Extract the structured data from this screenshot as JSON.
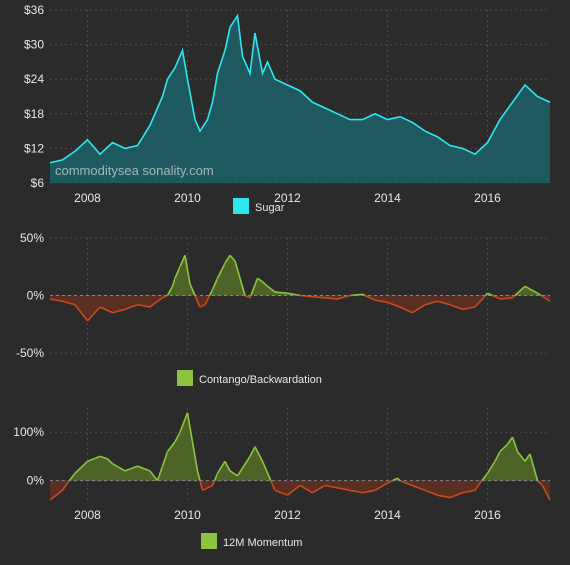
{
  "watermark": "commoditysea sonality.com",
  "colors": {
    "background": "#2b2b2b",
    "grid": "#4a4a4a",
    "text": "#e8e8e8",
    "sugar_line": "#2ee6f0",
    "sugar_fill": "#1f5c63",
    "positive_line": "#8bc53f",
    "positive_fill": "#4d6328",
    "negative_line": "#c94a1c",
    "negative_fill": "#5a2e20"
  },
  "chart_data": [
    {
      "type": "area",
      "legend": [
        "Sugar"
      ],
      "x_ticks": [
        "2008",
        "2010",
        "2012",
        "2014",
        "2016"
      ],
      "y_ticks": [
        "$6",
        "$12",
        "$18",
        "$24",
        "$30",
        "$36"
      ],
      "ylim": [
        6,
        36
      ],
      "xlim": [
        2007.25,
        2017.25
      ],
      "grid": true,
      "legend_position": "bottom-center",
      "x": [
        2007.25,
        2007.5,
        2007.75,
        2008.0,
        2008.25,
        2008.5,
        2008.75,
        2009.0,
        2009.25,
        2009.5,
        2009.6,
        2009.75,
        2009.85,
        2009.9,
        2010.0,
        2010.15,
        2010.25,
        2010.4,
        2010.5,
        2010.6,
        2010.75,
        2010.85,
        2011.0,
        2011.1,
        2011.25,
        2011.35,
        2011.5,
        2011.6,
        2011.75,
        2012.0,
        2012.25,
        2012.5,
        2012.75,
        2013.0,
        2013.25,
        2013.5,
        2013.75,
        2014.0,
        2014.25,
        2014.5,
        2014.75,
        2015.0,
        2015.25,
        2015.5,
        2015.75,
        2016.0,
        2016.25,
        2016.5,
        2016.75,
        2017.0,
        2017.25
      ],
      "series": [
        {
          "name": "Sugar",
          "values": [
            9.5,
            10,
            11.5,
            13.5,
            11,
            13,
            12,
            12.5,
            16,
            21,
            24,
            26,
            28,
            29,
            24,
            17,
            15,
            17,
            20,
            25,
            29,
            33,
            35,
            28,
            25,
            32,
            25,
            27,
            24,
            23,
            22,
            20,
            19,
            18,
            17,
            17,
            18,
            17,
            17.5,
            16.5,
            15,
            14,
            12.5,
            12,
            11,
            13,
            17,
            20,
            23,
            21,
            20
          ]
        }
      ]
    },
    {
      "type": "area",
      "legend": [
        "Contango/Backwardation"
      ],
      "x_ticks": [],
      "y_ticks": [
        "-50%",
        "0%",
        "50%"
      ],
      "ylim": [
        -50,
        50
      ],
      "xlim": [
        2007.25,
        2017.25
      ],
      "grid": true,
      "legend_position": "bottom-center",
      "x": [
        2007.25,
        2007.5,
        2007.75,
        2008.0,
        2008.25,
        2008.5,
        2008.75,
        2009.0,
        2009.25,
        2009.4,
        2009.5,
        2009.6,
        2009.7,
        2009.75,
        2009.85,
        2009.95,
        2010.05,
        2010.15,
        2010.25,
        2010.35,
        2010.5,
        2010.6,
        2010.75,
        2010.85,
        2010.95,
        2011.05,
        2011.15,
        2011.25,
        2011.4,
        2011.5,
        2011.6,
        2011.75,
        2012.0,
        2012.25,
        2012.5,
        2012.75,
        2013.0,
        2013.25,
        2013.5,
        2013.75,
        2014.0,
        2014.25,
        2014.5,
        2014.75,
        2015.0,
        2015.25,
        2015.5,
        2015.75,
        2016.0,
        2016.25,
        2016.5,
        2016.75,
        2017.0,
        2017.25
      ],
      "series": [
        {
          "name": "Contango/Backwardation",
          "values": [
            -3,
            -5,
            -8,
            -22,
            -10,
            -15,
            -12,
            -8,
            -10,
            -5,
            -2,
            0,
            8,
            15,
            25,
            35,
            10,
            0,
            -10,
            -8,
            5,
            15,
            28,
            35,
            30,
            15,
            0,
            -2,
            15,
            12,
            8,
            3,
            2,
            0,
            -1,
            -2,
            -3,
            0,
            1,
            -4,
            -6,
            -10,
            -15,
            -8,
            -5,
            -8,
            -12,
            -10,
            2,
            -3,
            -2,
            8,
            2,
            -5
          ]
        }
      ]
    },
    {
      "type": "area",
      "legend": [
        "12M Momentum"
      ],
      "x_ticks": [
        "2008",
        "2010",
        "2012",
        "2014",
        "2016"
      ],
      "y_ticks": [
        "0%",
        "100%"
      ],
      "ylim": [
        -40,
        150
      ],
      "xlim": [
        2007.25,
        2017.25
      ],
      "grid": true,
      "legend_position": "bottom-center",
      "x": [
        2007.25,
        2007.5,
        2007.6,
        2007.75,
        2008.0,
        2008.25,
        2008.4,
        2008.5,
        2008.75,
        2009.0,
        2009.25,
        2009.4,
        2009.5,
        2009.6,
        2009.75,
        2009.85,
        2010.0,
        2010.1,
        2010.2,
        2010.3,
        2010.5,
        2010.6,
        2010.75,
        2010.85,
        2011.0,
        2011.25,
        2011.35,
        2011.5,
        2011.75,
        2012.0,
        2012.25,
        2012.5,
        2012.75,
        2013.0,
        2013.25,
        2013.5,
        2013.75,
        2014.0,
        2014.2,
        2014.25,
        2014.5,
        2014.75,
        2015.0,
        2015.25,
        2015.5,
        2015.75,
        2015.85,
        2016.0,
        2016.15,
        2016.25,
        2016.4,
        2016.5,
        2016.6,
        2016.75,
        2016.85,
        2017.0,
        2017.1,
        2017.25
      ],
      "series": [
        {
          "name": "12M Momentum",
          "values": [
            -40,
            -20,
            -5,
            15,
            40,
            50,
            45,
            35,
            20,
            30,
            20,
            0,
            30,
            60,
            80,
            100,
            140,
            80,
            20,
            -20,
            -10,
            15,
            40,
            20,
            10,
            50,
            70,
            40,
            -20,
            -30,
            -10,
            -25,
            -10,
            -15,
            -20,
            -25,
            -20,
            -5,
            5,
            0,
            -10,
            -20,
            -30,
            -35,
            -25,
            -20,
            -5,
            15,
            40,
            60,
            75,
            90,
            60,
            40,
            55,
            0,
            -10,
            -40
          ]
        }
      ]
    }
  ]
}
